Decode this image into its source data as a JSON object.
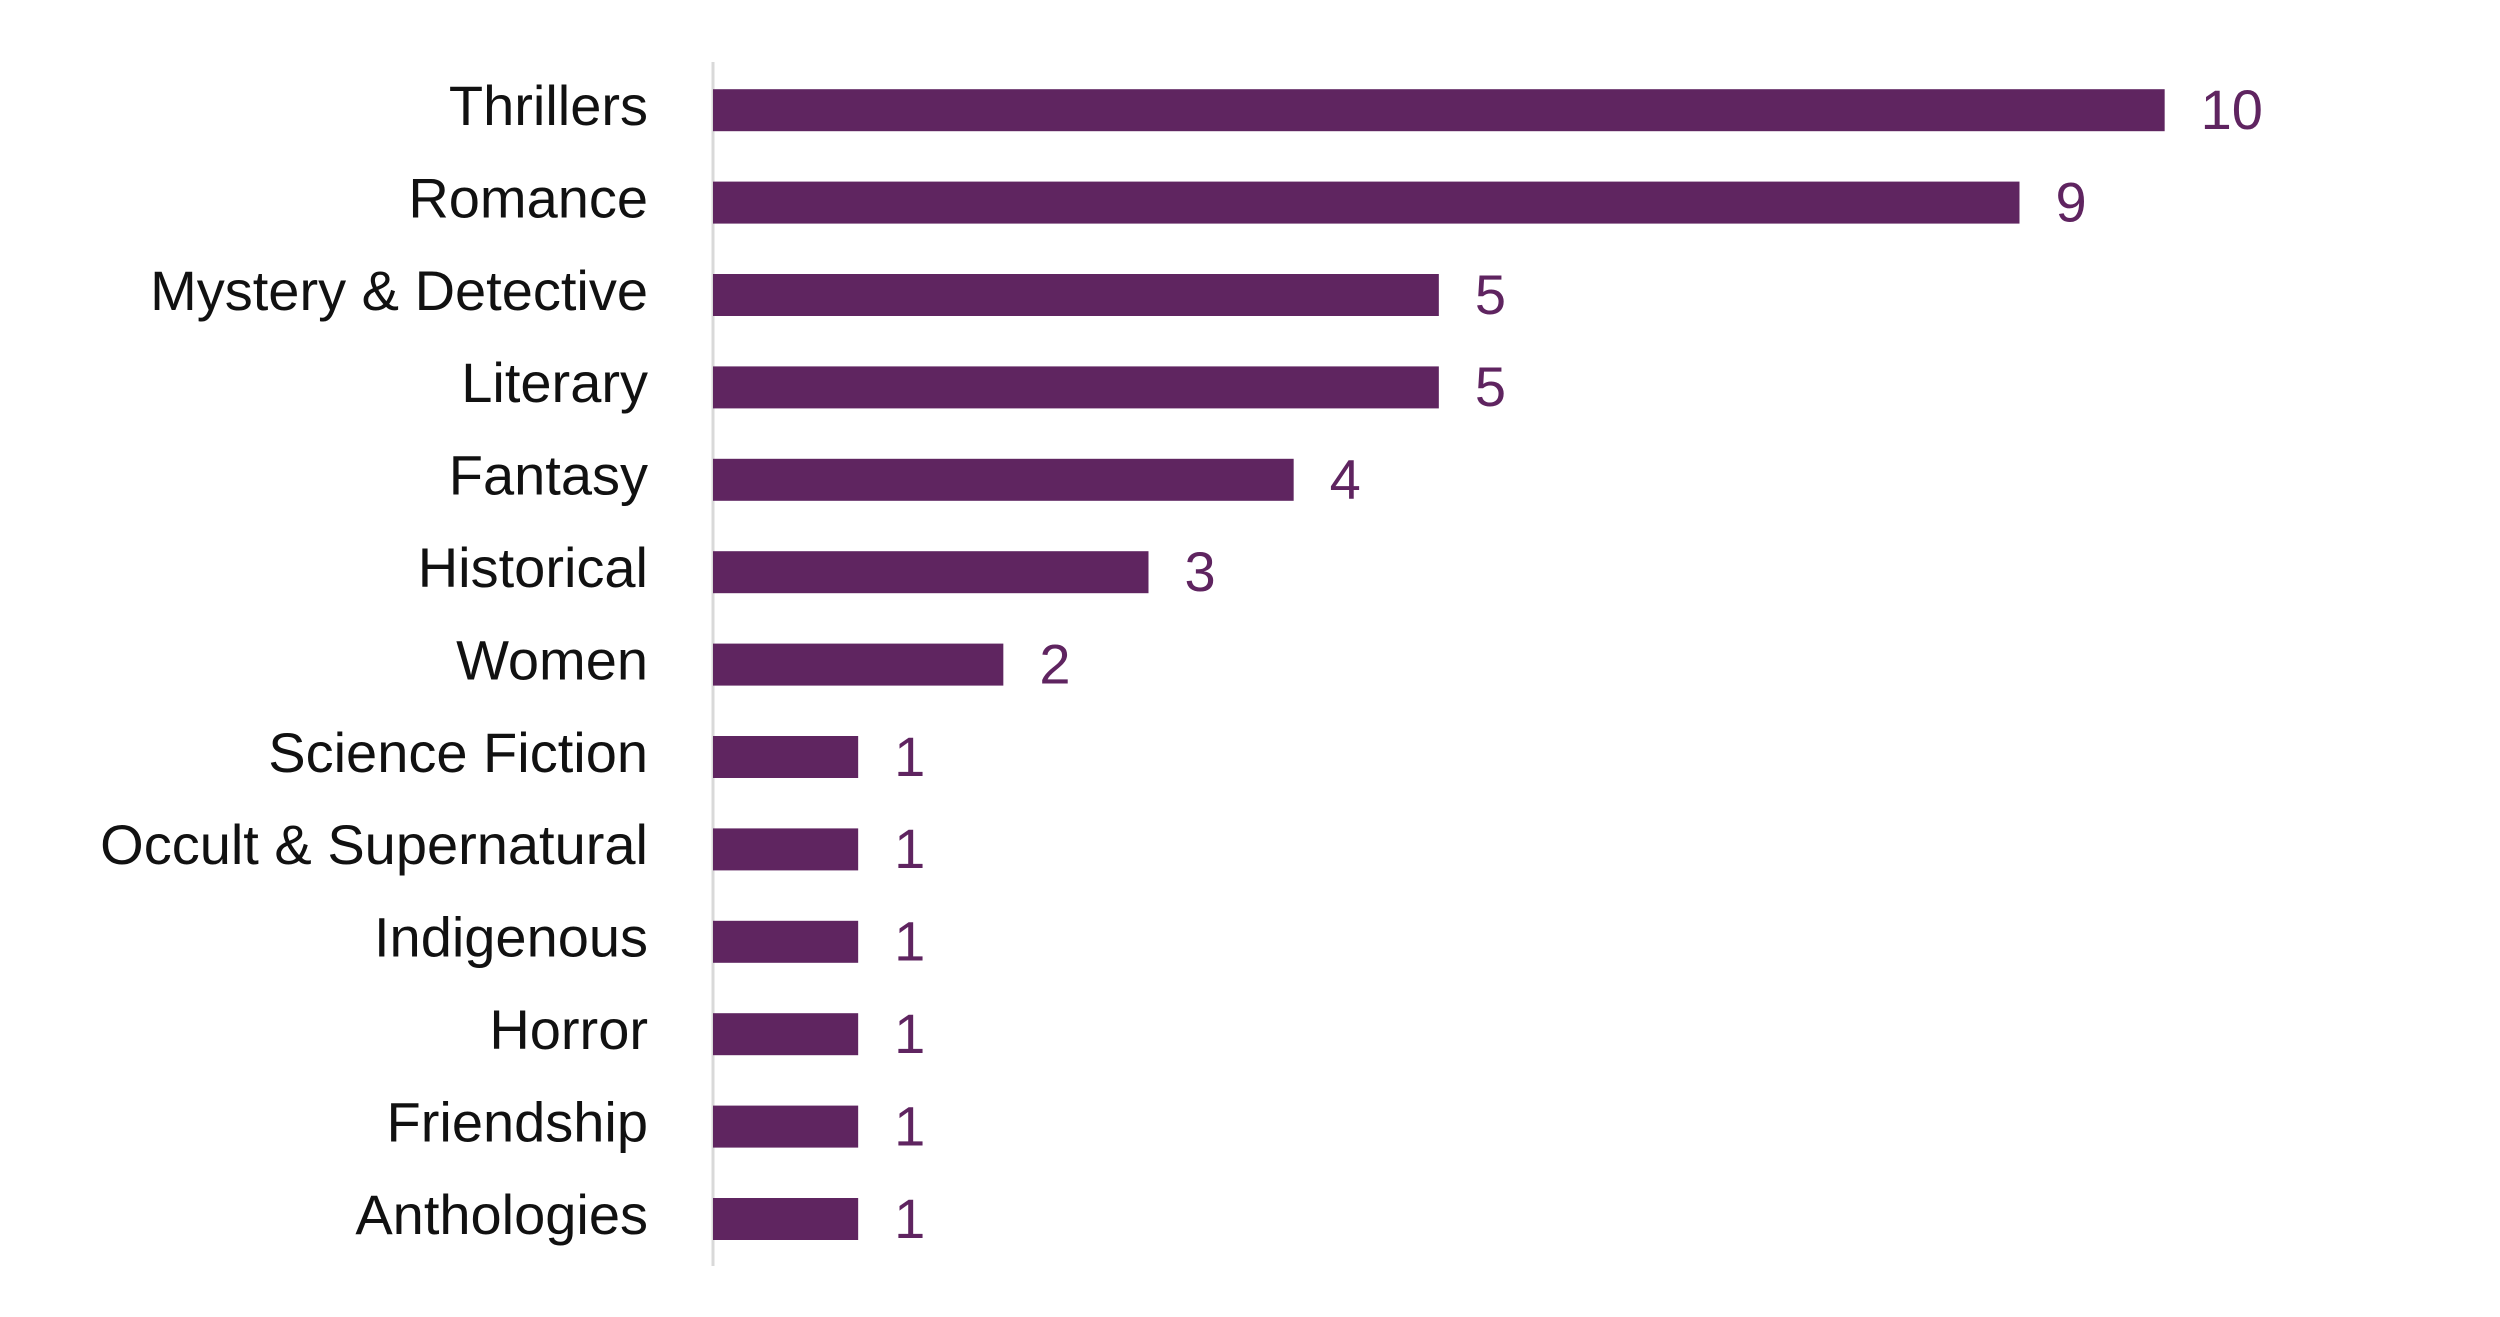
{
  "chart_data": {
    "type": "hbar",
    "categories": [
      "Thrillers",
      "Romance",
      "Mystery & Detective",
      "Literary",
      "Fantasy",
      "Historical",
      "Women",
      "Science Fiction",
      "Occult & Supernatural",
      "Indigenous",
      "Horror",
      "Friendship",
      "Anthologies"
    ],
    "values": [
      10,
      9,
      5,
      5,
      4,
      3,
      2,
      1,
      1,
      1,
      1,
      1,
      1
    ],
    "color": "#5f2560",
    "xlim": [
      0,
      12
    ]
  }
}
